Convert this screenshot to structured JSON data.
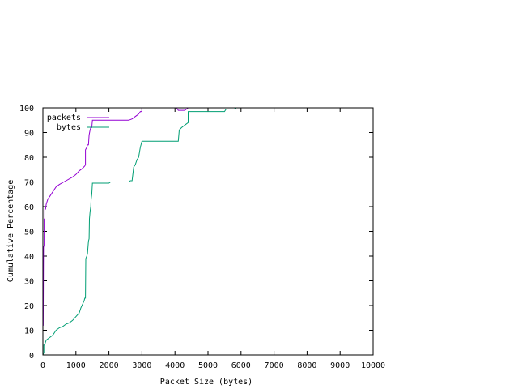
{
  "chart_data": {
    "type": "line",
    "title": "",
    "xlabel": "Packet Size (bytes)",
    "ylabel": "Cumulative Percentage",
    "xlim": [
      0,
      10000
    ],
    "ylim": [
      0,
      100
    ],
    "grid": false,
    "legend_position": "top-left",
    "x_ticks": [
      0,
      1000,
      2000,
      3000,
      4000,
      5000,
      6000,
      7000,
      8000,
      9000,
      10000
    ],
    "y_ticks": [
      0,
      10,
      20,
      30,
      40,
      50,
      60,
      70,
      80,
      90,
      100
    ],
    "x_tick_labels": [
      "0",
      "1000",
      "2000",
      "3000",
      "4000",
      "5000",
      "6000",
      "7000",
      "8000",
      "9000",
      "10000"
    ],
    "y_tick_labels": [
      "0",
      "10",
      "20",
      "30",
      "40",
      "50",
      "60",
      "70",
      "80",
      "90",
      "100"
    ],
    "series": [
      {
        "name": "packets",
        "color": "#9400d3",
        "points": [
          [
            0,
            0
          ],
          [
            0,
            12
          ],
          [
            10,
            12
          ],
          [
            20,
            44
          ],
          [
            40,
            44
          ],
          [
            40,
            55
          ],
          [
            60,
            55
          ],
          [
            60,
            59
          ],
          [
            80,
            59
          ],
          [
            100,
            61
          ],
          [
            150,
            63
          ],
          [
            200,
            64
          ],
          [
            300,
            66
          ],
          [
            400,
            68
          ],
          [
            500,
            69
          ],
          [
            700,
            70.5
          ],
          [
            900,
            72
          ],
          [
            1000,
            73
          ],
          [
            1100,
            74.5
          ],
          [
            1200,
            75.5
          ],
          [
            1270,
            76.5
          ],
          [
            1290,
            77
          ],
          [
            1290,
            83
          ],
          [
            1330,
            84
          ],
          [
            1350,
            85
          ],
          [
            1380,
            85
          ],
          [
            1400,
            89
          ],
          [
            1430,
            91
          ],
          [
            1450,
            92
          ],
          [
            1480,
            92
          ],
          [
            1500,
            95
          ],
          [
            2000,
            95
          ],
          [
            2600,
            95
          ],
          [
            2700,
            95.5
          ],
          [
            2800,
            96.5
          ],
          [
            2850,
            97
          ],
          [
            2900,
            97.5
          ],
          [
            2950,
            98.5
          ],
          [
            3000,
            98.5
          ],
          [
            3000,
            100
          ],
          [
            4050,
            100
          ],
          [
            4100,
            99
          ],
          [
            4300,
            99
          ],
          [
            4350,
            99.5
          ],
          [
            4400,
            100
          ],
          [
            6000,
            100
          ]
        ]
      },
      {
        "name": "bytes",
        "color": "#009e73",
        "points": [
          [
            0,
            0
          ],
          [
            30,
            1
          ],
          [
            30,
            4
          ],
          [
            50,
            4
          ],
          [
            100,
            6
          ],
          [
            200,
            7
          ],
          [
            300,
            8
          ],
          [
            400,
            10
          ],
          [
            500,
            11
          ],
          [
            600,
            11.5
          ],
          [
            700,
            12.5
          ],
          [
            800,
            13
          ],
          [
            900,
            14
          ],
          [
            1000,
            15.5
          ],
          [
            1100,
            17
          ],
          [
            1150,
            19
          ],
          [
            1200,
            20.5
          ],
          [
            1250,
            22
          ],
          [
            1270,
            23
          ],
          [
            1290,
            23
          ],
          [
            1300,
            39
          ],
          [
            1330,
            40
          ],
          [
            1350,
            41
          ],
          [
            1380,
            46
          ],
          [
            1400,
            47
          ],
          [
            1410,
            55
          ],
          [
            1430,
            58
          ],
          [
            1450,
            60
          ],
          [
            1460,
            63
          ],
          [
            1480,
            65
          ],
          [
            1500,
            69.5
          ],
          [
            1800,
            69.5
          ],
          [
            2000,
            69.5
          ],
          [
            2050,
            70
          ],
          [
            2600,
            70
          ],
          [
            2650,
            70.5
          ],
          [
            2700,
            70.5
          ],
          [
            2750,
            76
          ],
          [
            2800,
            77
          ],
          [
            2850,
            79
          ],
          [
            2900,
            80
          ],
          [
            2950,
            84
          ],
          [
            3000,
            86.5
          ],
          [
            4000,
            86.5
          ],
          [
            4100,
            86.5
          ],
          [
            4130,
            91
          ],
          [
            4200,
            92
          ],
          [
            4300,
            93
          ],
          [
            4400,
            94
          ],
          [
            4400,
            98.5
          ],
          [
            5500,
            98.5
          ],
          [
            5550,
            99.5
          ],
          [
            5800,
            99.5
          ],
          [
            5850,
            100
          ],
          [
            6000,
            100
          ]
        ]
      }
    ]
  }
}
